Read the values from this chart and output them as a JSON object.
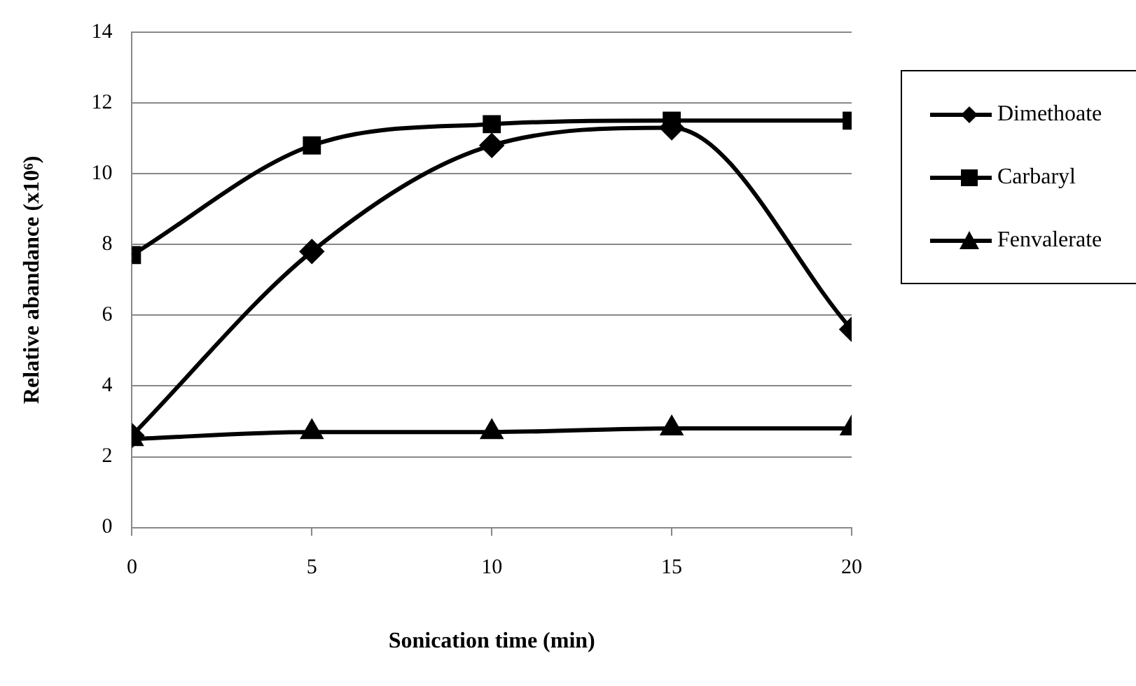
{
  "chart_data": {
    "type": "line",
    "xlabel": "Sonication time (min)",
    "ylabel": "Relative abandance (x10⁶)",
    "x": [
      0,
      5,
      10,
      15,
      20
    ],
    "xlim": [
      0,
      20
    ],
    "xticks": [
      0,
      5,
      10,
      15,
      20
    ],
    "ylim": [
      0,
      14
    ],
    "yticks": [
      0,
      2,
      4,
      6,
      8,
      10,
      12,
      14
    ],
    "grid": "y",
    "legend": "right",
    "line_style": "solid",
    "series": [
      {
        "name": "Dimethoate",
        "color": "#000000",
        "marker": "diamond",
        "values": [
          2.6,
          7.8,
          10.8,
          11.3,
          5.6
        ]
      },
      {
        "name": "Carbaryl",
        "color": "#000000",
        "marker": "square",
        "values": [
          7.7,
          10.8,
          11.4,
          11.5,
          11.5
        ]
      },
      {
        "name": "Fenvalerate",
        "color": "#000000",
        "marker": "triangle",
        "values": [
          2.5,
          2.7,
          2.7,
          2.8,
          2.8
        ]
      }
    ]
  }
}
